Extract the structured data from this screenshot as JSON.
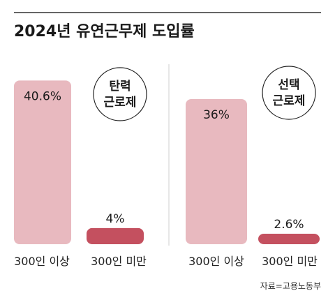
{
  "title": "2024년 유연근무제 도입률",
  "source": "자료=고용노동부",
  "colors": {
    "large_company_bar": "#e8b9bf",
    "small_company_bar": "#c4505f",
    "rule": "#333333",
    "divider": "#cfcfcf"
  },
  "chart_data": [
    {
      "type": "bar",
      "badge_line1": "탄력",
      "badge_line2": "근로제",
      "categories": [
        "300인 이상",
        "300인 미만"
      ],
      "values": [
        40.6,
        4
      ],
      "value_labels": [
        "40.6%",
        "4%"
      ],
      "ylim": [
        0,
        45
      ]
    },
    {
      "type": "bar",
      "badge_line1": "선택",
      "badge_line2": "근로제",
      "categories": [
        "300인 이상",
        "300인 미만"
      ],
      "values": [
        36,
        2.6
      ],
      "value_labels": [
        "36%",
        "2.6%"
      ],
      "ylim": [
        0,
        45
      ]
    }
  ]
}
